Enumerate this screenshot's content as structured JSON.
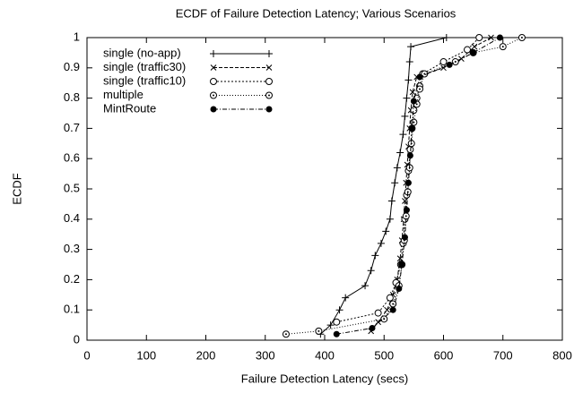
{
  "chart_data": {
    "type": "line",
    "title": "ECDF of Failure Detection Latency; Various Scenarios",
    "x_label": "Failure Detection Latency (secs)",
    "y_label": "ECDF",
    "xlim": [
      0,
      800
    ],
    "xticks": [
      0,
      100,
      200,
      300,
      400,
      500,
      600,
      700,
      800
    ],
    "ylim": [
      0,
      1
    ],
    "yticks": [
      0,
      0.1,
      0.2,
      0.3,
      0.4,
      0.5,
      0.6,
      0.7,
      0.8,
      0.9,
      1
    ],
    "grid": false,
    "legend": "upper-left",
    "series": [
      {
        "name": "single (no-app)",
        "color": "#000000",
        "line_style": "solid",
        "marker": "plus",
        "x": [
          393,
          410,
          425,
          435,
          468,
          478,
          485,
          495,
          503,
          510,
          513,
          518,
          522,
          527,
          532,
          535,
          538,
          541,
          543,
          545,
          605
        ],
        "values": [
          0.02,
          0.05,
          0.1,
          0.14,
          0.18,
          0.23,
          0.28,
          0.32,
          0.36,
          0.4,
          0.46,
          0.52,
          0.57,
          0.62,
          0.68,
          0.74,
          0.8,
          0.86,
          0.92,
          0.97,
          1.0
        ]
      },
      {
        "name": "single (traffic30)",
        "color": "#000000",
        "line_style": "dashed",
        "marker": "x",
        "x": [
          478,
          490,
          505,
          515,
          522,
          527,
          530,
          533,
          535,
          537,
          539,
          541,
          543,
          545,
          548,
          555,
          600,
          630,
          652,
          680
        ],
        "values": [
          0.03,
          0.06,
          0.1,
          0.15,
          0.2,
          0.27,
          0.33,
          0.4,
          0.46,
          0.52,
          0.58,
          0.64,
          0.7,
          0.76,
          0.82,
          0.87,
          0.9,
          0.93,
          0.97,
          1.0
        ]
      },
      {
        "name": "single (traffic10)",
        "color": "#000000",
        "line_style": "shortdash",
        "marker": "circle",
        "x": [
          420,
          490,
          510,
          520,
          528,
          532,
          535,
          538,
          541,
          544,
          547,
          550,
          555,
          560,
          565,
          600,
          640,
          660
        ],
        "values": [
          0.06,
          0.09,
          0.14,
          0.19,
          0.25,
          0.32,
          0.4,
          0.48,
          0.56,
          0.63,
          0.7,
          0.76,
          0.8,
          0.84,
          0.88,
          0.92,
          0.96,
          1.0
        ]
      },
      {
        "name": "multiple",
        "color": "#000000",
        "line_style": "dotted",
        "marker": "circle-dot",
        "x": [
          335,
          390,
          500,
          515,
          525,
          530,
          534,
          537,
          540,
          543,
          546,
          550,
          555,
          560,
          568,
          620,
          650,
          700,
          732
        ],
        "values": [
          0.02,
          0.03,
          0.07,
          0.12,
          0.18,
          0.25,
          0.33,
          0.41,
          0.49,
          0.57,
          0.65,
          0.72,
          0.78,
          0.83,
          0.88,
          0.92,
          0.95,
          0.97,
          1.0
        ]
      },
      {
        "name": "MintRoute",
        "color": "#000000",
        "line_style": "dashdot",
        "marker": "dot",
        "x": [
          420,
          480,
          515,
          525,
          530,
          535,
          538,
          541,
          544,
          547,
          550,
          560,
          610,
          650,
          695
        ],
        "values": [
          0.02,
          0.04,
          0.1,
          0.17,
          0.25,
          0.34,
          0.43,
          0.52,
          0.61,
          0.7,
          0.79,
          0.87,
          0.91,
          0.95,
          1.0
        ]
      }
    ]
  }
}
